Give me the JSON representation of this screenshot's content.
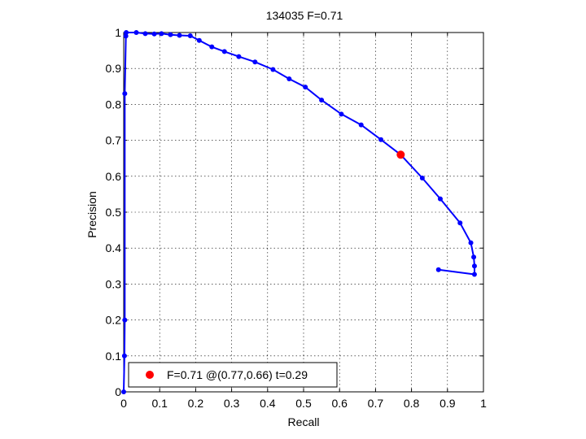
{
  "chart_data": {
    "type": "line",
    "title": "134035 F=0.71",
    "xlabel": "Recall",
    "ylabel": "Precision",
    "xlim": [
      0,
      1
    ],
    "ylim": [
      0,
      1
    ],
    "grid": true,
    "legend_position": "bottom-left",
    "xticks": [
      "0",
      "0.1",
      "0.2",
      "0.3",
      "0.4",
      "0.5",
      "0.6",
      "0.7",
      "0.8",
      "0.9",
      "1"
    ],
    "yticks": [
      "0",
      "0.1",
      "0.2",
      "0.3",
      "0.4",
      "0.5",
      "0.6",
      "0.7",
      "0.8",
      "0.9",
      "1"
    ],
    "series": [
      {
        "color": "#0000ff",
        "points": [
          [
            0.0,
            0.0
          ],
          [
            0.002,
            0.1
          ],
          [
            0.003,
            0.2
          ],
          [
            0.003,
            0.83
          ],
          [
            0.006,
            0.99
          ],
          [
            0.007,
            1.0
          ],
          [
            0.035,
            1.0
          ],
          [
            0.06,
            0.997
          ],
          [
            0.085,
            0.996
          ],
          [
            0.105,
            0.997
          ],
          [
            0.13,
            0.994
          ],
          [
            0.155,
            0.992
          ],
          [
            0.185,
            0.991
          ],
          [
            0.21,
            0.978
          ],
          [
            0.245,
            0.96
          ],
          [
            0.28,
            0.947
          ],
          [
            0.32,
            0.933
          ],
          [
            0.365,
            0.918
          ],
          [
            0.415,
            0.897
          ],
          [
            0.46,
            0.871
          ],
          [
            0.505,
            0.848
          ],
          [
            0.55,
            0.812
          ],
          [
            0.605,
            0.773
          ],
          [
            0.66,
            0.743
          ],
          [
            0.715,
            0.702
          ],
          [
            0.77,
            0.66
          ],
          [
            0.83,
            0.595
          ],
          [
            0.88,
            0.537
          ],
          [
            0.935,
            0.47
          ],
          [
            0.965,
            0.415
          ],
          [
            0.973,
            0.375
          ],
          [
            0.975,
            0.35
          ],
          [
            0.975,
            0.327
          ],
          [
            0.875,
            0.34
          ]
        ]
      }
    ],
    "highlight": {
      "x": 0.77,
      "y": 0.66,
      "color": "#ff0000"
    },
    "legend": {
      "label": "F=0.71 @(0.77,0.66) t=0.29",
      "color": "#ff0000"
    }
  }
}
